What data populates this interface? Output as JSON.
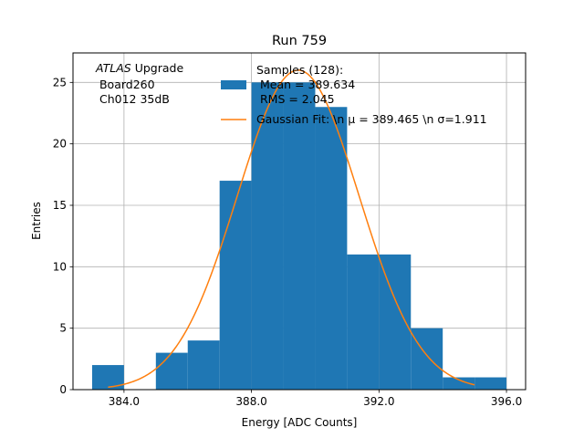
{
  "chart_data": {
    "type": "bar",
    "title": "Run 759",
    "xlabel": "Energy [ADC Counts]",
    "ylabel": "Entries",
    "xlim": [
      382.4,
      396.6
    ],
    "ylim": [
      0,
      27.4
    ],
    "grid": true,
    "x_ticks": [
      384,
      388,
      392,
      396
    ],
    "x_tick_labels": [
      "384.0",
      "388.0",
      "392.0",
      "396.0"
    ],
    "y_ticks": [
      0,
      5,
      10,
      15,
      20,
      25
    ],
    "y_tick_labels": [
      "0",
      "5",
      "10",
      "15",
      "20",
      "25"
    ],
    "histogram": {
      "name": "Samples",
      "color": "#1f77b4",
      "bin_edges": [
        383,
        384,
        385,
        386,
        387,
        388,
        389,
        390,
        391,
        392,
        393,
        394,
        395,
        396
      ],
      "counts": [
        2,
        0,
        3,
        4,
        17,
        25,
        25,
        23,
        11,
        11,
        5,
        1,
        1
      ]
    },
    "fit": {
      "name": "Gaussian Fit",
      "color": "#ff7f0e",
      "mu": 389.465,
      "sigma": 1.911,
      "amplitude": 26.0,
      "x_range": [
        383.5,
        395.0
      ]
    },
    "legend": {
      "position": "top-right",
      "samples_lines": [
        "Samples (128):",
        " Mean = 389.634",
        " RMS = 2.045"
      ],
      "fit_label": "Gaussian Fit: \\n μ = 389.465 \\n σ=1.911"
    },
    "annotation": {
      "italic": "ATLAS",
      "line1_rest": " Upgrade",
      "line2": " Board260",
      "line3": " Ch012 35dB"
    }
  }
}
